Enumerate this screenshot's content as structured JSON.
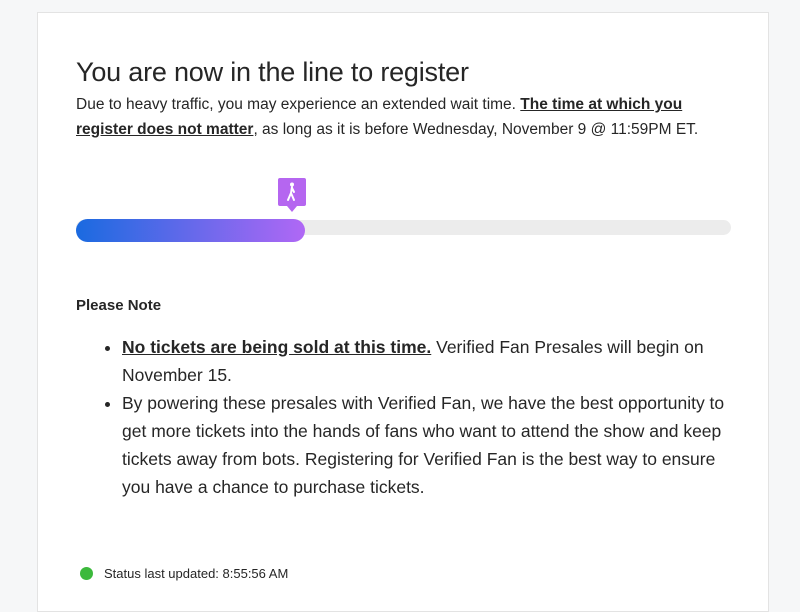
{
  "title": "You are now in the line to register",
  "intro": {
    "text_before": "Due to heavy traffic, you may experience an extended wait time. ",
    "emphasis": "The time at which you register does not matter",
    "text_after": ", as long as it is before Wednesday, November 9 @ 11:59PM ET."
  },
  "progress": {
    "percent": 35,
    "marker_icon": "walking-person-icon",
    "gradient_start": "#1a6ae0",
    "gradient_end": "#b068f5",
    "marker_color": "#b566f0"
  },
  "note": {
    "title": "Please Note",
    "items": [
      {
        "emphasis": "No tickets are being sold at this time.",
        "text": " Verified Fan Presales will begin on November 15."
      },
      {
        "emphasis": "",
        "text": "By powering these presales with Verified Fan, we have the best opportunity to get more tickets into the hands of fans who want to attend the show and keep tickets away from bots. Registering for Verified Fan is the best way to ensure you have a chance to purchase tickets."
      }
    ]
  },
  "status": {
    "label": "Status last updated: 8:55:56 AM",
    "color": "#3cb93c"
  }
}
